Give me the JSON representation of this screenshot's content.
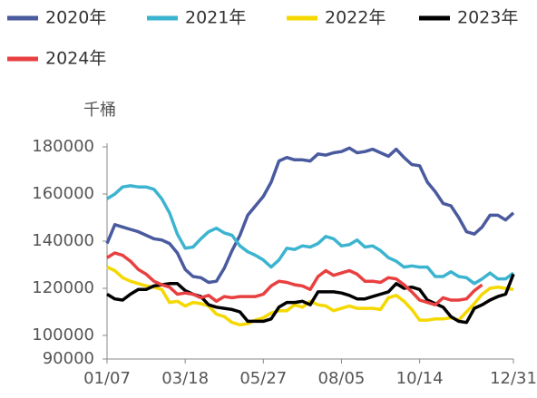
{
  "chart_data": {
    "type": "line",
    "y_label": "千桶",
    "categories": [
      "01/07",
      null,
      null,
      null,
      null,
      null,
      null,
      null,
      null,
      null,
      "03/18",
      null,
      null,
      null,
      null,
      null,
      null,
      null,
      null,
      null,
      "05/27",
      null,
      null,
      null,
      null,
      null,
      null,
      null,
      null,
      null,
      "08/05",
      null,
      null,
      null,
      null,
      null,
      null,
      null,
      null,
      null,
      "10/14",
      null,
      null,
      null,
      null,
      null,
      null,
      null,
      null,
      null,
      null,
      null,
      "12/31"
    ],
    "ylim": [
      90000,
      180000
    ],
    "yticks": [
      90000,
      100000,
      120000,
      140000,
      160000,
      180000
    ],
    "legend": "top",
    "series": [
      {
        "name": "2020年",
        "color": "#4a5a9e",
        "values": [
          139000,
          147000,
          146000,
          145000,
          144000,
          142500,
          141000,
          140500,
          139000,
          135000,
          128000,
          125000,
          124500,
          122500,
          123000,
          128500,
          136000,
          142500,
          151000,
          155000,
          159000,
          165000,
          174000,
          175500,
          174500,
          174500,
          174000,
          177000,
          176500,
          177500,
          178000,
          179500,
          177500,
          178000,
          179000,
          177500,
          176000,
          179000,
          175500,
          172500,
          172000,
          165000,
          161000,
          156000,
          155000,
          150000,
          144000,
          143000,
          146000,
          151000,
          151000,
          149000,
          152000
        ]
      },
      {
        "name": "2021年",
        "color": "#3cb4d0",
        "values": [
          158000,
          160000,
          163000,
          163500,
          163000,
          163000,
          162000,
          158000,
          152000,
          143000,
          137000,
          137500,
          141000,
          144000,
          145500,
          143500,
          142500,
          138000,
          135500,
          134000,
          132000,
          129000,
          132000,
          137000,
          136500,
          138000,
          137500,
          139000,
          142000,
          141000,
          138000,
          138500,
          140500,
          137500,
          138000,
          136000,
          133000,
          131500,
          129000,
          129500,
          129000,
          129000,
          125000,
          125000,
          127000,
          125000,
          124500,
          122000,
          124000,
          126500,
          124000,
          124000,
          126500
        ]
      },
      {
        "name": "2022年",
        "color": "#f5d800",
        "values": [
          129000,
          127500,
          124500,
          123000,
          122000,
          121000,
          120500,
          119500,
          114000,
          114500,
          112500,
          114000,
          113500,
          112500,
          109000,
          108000,
          105500,
          104500,
          105000,
          106500,
          107500,
          109500,
          110500,
          110500,
          113000,
          112000,
          114500,
          113000,
          112500,
          110500,
          111500,
          112500,
          111500,
          111500,
          111500,
          111000,
          116000,
          117000,
          114500,
          111000,
          106500,
          106500,
          107000,
          107000,
          107500,
          106500,
          110000,
          113500,
          117500,
          120000,
          120500,
          120000,
          119500
        ]
      },
      {
        "name": "2023年",
        "color": "#000000",
        "values": [
          117500,
          115500,
          115000,
          117500,
          119500,
          119500,
          121000,
          121500,
          122000,
          122000,
          119000,
          117500,
          116500,
          113000,
          112000,
          111500,
          111000,
          110000,
          106000,
          106000,
          106000,
          107000,
          112000,
          114000,
          114000,
          114500,
          113000,
          118500,
          118500,
          118500,
          118000,
          117000,
          115500,
          115500,
          116500,
          117500,
          118500,
          122000,
          120000,
          120500,
          119500,
          115000,
          113500,
          112000,
          108000,
          106000,
          105500,
          111500,
          113000,
          115000,
          116500,
          117500,
          126000
        ]
      },
      {
        "name": "2024年",
        "color": "#e84040",
        "values": [
          133000,
          135000,
          134000,
          131500,
          128000,
          126000,
          123000,
          121500,
          120500,
          117500,
          118000,
          117500,
          116000,
          117000,
          114500,
          116500,
          116000,
          116500,
          116500,
          116500,
          117500,
          121000,
          123000,
          122500,
          121500,
          121000,
          119500,
          125000,
          127500,
          125500,
          126500,
          127500,
          126000,
          123000,
          123000,
          122500,
          124500,
          124000,
          121500,
          118500,
          115000,
          114000,
          113000,
          116000,
          115000,
          115000,
          115500,
          119000,
          121500,
          null,
          null,
          null,
          null
        ]
      }
    ]
  }
}
